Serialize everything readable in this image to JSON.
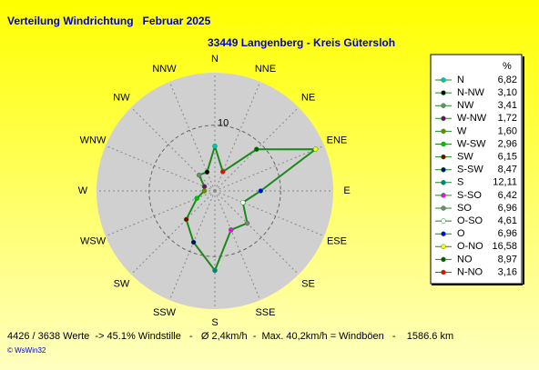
{
  "chart_data": {
    "type": "radar",
    "title": "Verteilung Windrichtung   Februar 2025",
    "subtitle": "33449 Langenberg - Kreis Gütersloh",
    "direction_labels": [
      "N",
      "NNE",
      "NE",
      "ENE",
      "E",
      "ESE",
      "SE",
      "SSE",
      "S",
      "SSW",
      "SW",
      "WSW",
      "W",
      "WNW",
      "NW",
      "NNW"
    ],
    "categories": [
      "N",
      "N-NW",
      "NW",
      "W-NW",
      "W",
      "W-SW",
      "SW",
      "S-SW",
      "S",
      "S-SO",
      "SO",
      "O-SO",
      "O",
      "O-NO",
      "NO",
      "N-NO"
    ],
    "values": [
      6.82,
      3.1,
      3.41,
      1.72,
      1.6,
      2.96,
      6.15,
      8.47,
      12.11,
      6.42,
      6.96,
      4.61,
      6.96,
      16.58,
      8.97,
      3.16
    ],
    "value_labels": [
      "6,82",
      "3,10",
      "3,41",
      "1,72",
      "1,60",
      "2,96",
      "6,15",
      "8,47",
      "12,11",
      "6,42",
      "6,96",
      "4,61",
      "6,96",
      "16,58",
      "8,97",
      "3,16"
    ],
    "colors": [
      "#00c0c0",
      "#000000",
      "#808080",
      "#800080",
      "#808000",
      "#00c000",
      "#800000",
      "#000080",
      "#008080",
      "#ff00ff",
      "#808080",
      "#ffffff",
      "#0000ff",
      "#ffff00",
      "#006000",
      "#ff0000"
    ],
    "line_color": "#1a8a1a",
    "legend_header": "%",
    "rlim": [
      0,
      18
    ],
    "rticks": [
      10
    ],
    "footer": "4426 / 3638 Werte  -> 45.1% Windstille   -   Ø 2,4km/h  -  Max. 40,2km/h = Windböen   -    1586.6 km",
    "credit": "© WsWin32"
  }
}
